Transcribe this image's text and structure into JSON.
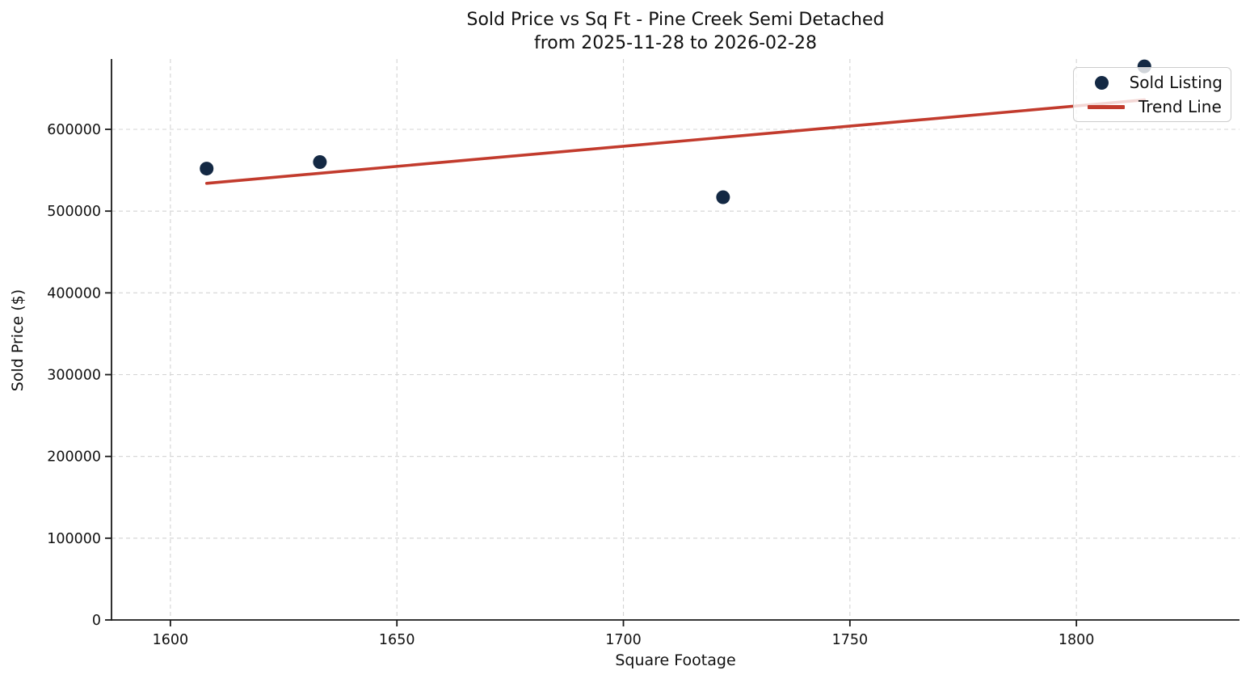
{
  "chart_data": {
    "type": "scatter",
    "title": "Sold Price vs Sq Ft - Pine Creek Semi Detached",
    "subtitle": "from 2025-11-28 to 2026-02-28",
    "xlabel": "Square Footage",
    "ylabel": "Sold Price ($)",
    "xlim": [
      1587,
      1836
    ],
    "ylim": [
      0,
      686000
    ],
    "x_ticks": [
      1600,
      1650,
      1700,
      1750,
      1800
    ],
    "y_ticks": [
      0,
      100000,
      200000,
      300000,
      400000,
      500000,
      600000
    ],
    "grid": true,
    "legend_position": "upper right",
    "colors": {
      "scatter": "#142944",
      "trend": "#c23b2d",
      "spine": "#1a1a1a",
      "gridline": "#d4d4d4",
      "text": "#111111"
    },
    "series": [
      {
        "name": "Sold Listing",
        "kind": "scatter",
        "color": "#142944",
        "points": [
          {
            "x": 1608,
            "y": 552000
          },
          {
            "x": 1633,
            "y": 560000
          },
          {
            "x": 1722,
            "y": 517000
          },
          {
            "x": 1815,
            "y": 677000
          }
        ]
      },
      {
        "name": "Trend Line",
        "kind": "line",
        "color": "#c23b2d",
        "points": [
          {
            "x": 1608,
            "y": 534000
          },
          {
            "x": 1815,
            "y": 636000
          }
        ]
      }
    ]
  }
}
